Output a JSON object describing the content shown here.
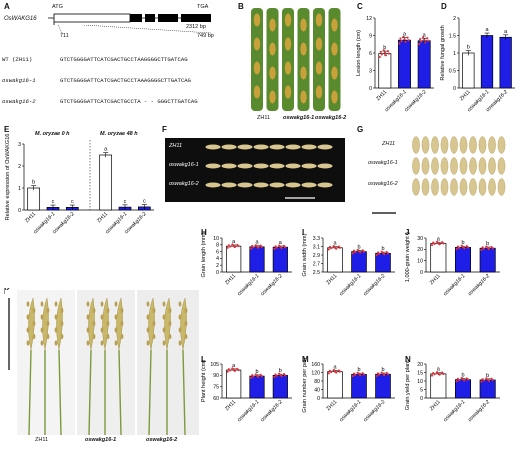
{
  "panels": {
    "A": {
      "label": "A",
      "gene": "OsWAKG16",
      "start_codon": "ATG",
      "stop_codon": "TGA",
      "length_total": "2312 bp",
      "pos_left": "711",
      "pos_right": "749 bp",
      "seqs": [
        {
          "name": "WT (ZH11)",
          "seq": "GTCTGGGGATTCATCGACTGCCTAAGGGGCTTGATCAG"
        },
        {
          "name": "oswakg16-1",
          "seq": "GTCTGGGGATTCATCGACTGCCTAAAGGGGCTTGATCAG"
        },
        {
          "name": "oswakg16-2",
          "seq": "GTCTGGGGATTCATCGACTGCCTA - - GGGCTTGATCAG"
        }
      ]
    },
    "B": {
      "label": "B",
      "genotypes": [
        "ZH11",
        "oswakg16-1",
        "oswakg16-2"
      ]
    },
    "C": {
      "label": "C"
    },
    "D": {
      "label": "D"
    },
    "E": {
      "label": "E",
      "cond1": "M. oryzae 0 h",
      "cond2": "M. oryzae 48 h"
    },
    "F": {
      "label": "F",
      "rows": [
        "ZH11",
        "oswakg16-1",
        "oswakg16-2"
      ]
    },
    "G": {
      "label": "G",
      "rows": [
        "ZH11",
        "oswakg16-1",
        "oswakg16-2"
      ]
    },
    "H": {
      "label": "H"
    },
    "I": {
      "label": "I"
    },
    "J": {
      "label": "J"
    },
    "K": {
      "label": "K",
      "genotypes": [
        "ZH11",
        "oswakg16-1",
        "oswakg16-2"
      ]
    },
    "L": {
      "label": "L"
    },
    "M": {
      "label": "M"
    },
    "N": {
      "label": "N"
    }
  },
  "colors": {
    "wt": "#ffffff",
    "mut": "#1e1ee6",
    "dots": "#e0323c",
    "leaf": "#5a8a2e",
    "lesion": "#c9a13a",
    "grain": "#d8c690",
    "brown": "#5a3a1a"
  },
  "chart_data": [
    {
      "id": "C",
      "type": "bar",
      "categories": [
        "ZH11",
        "oswakg16-1",
        "oswakg16-2"
      ],
      "values": [
        5.9,
        8.2,
        8.1
      ],
      "letters": [
        "b",
        "a",
        "a"
      ],
      "ylabel": "Lesion length (cm)",
      "ylim": [
        0,
        12
      ],
      "yticks": [
        0,
        3,
        6,
        9,
        12
      ]
    },
    {
      "id": "D",
      "type": "bar",
      "categories": [
        "ZH11",
        "oswakg16-1",
        "oswakg16-2"
      ],
      "values": [
        1.0,
        1.5,
        1.45
      ],
      "letters": [
        "b",
        "a",
        "a"
      ],
      "ylabel": "Relative fungal growth",
      "ylim": [
        0,
        2.0
      ],
      "yticks": [
        0,
        0.5,
        1.0,
        1.5,
        2.0
      ]
    },
    {
      "id": "E",
      "type": "bar",
      "categories": [
        "ZH11",
        "oswakg16-1",
        "oswakg16-2",
        "ZH11",
        "oswakg16-1",
        "oswakg16-2"
      ],
      "values": [
        1.0,
        0.12,
        0.12,
        2.5,
        0.13,
        0.14
      ],
      "letters": [
        "b",
        "c",
        "c",
        "a",
        "c",
        "c"
      ],
      "ylabel": "Relative expression of OsWAKG16",
      "ylim": [
        0,
        3
      ],
      "yticks": [
        0,
        1,
        2,
        3
      ]
    },
    {
      "id": "H",
      "type": "bar",
      "categories": [
        "ZH11",
        "oswakg16-1",
        "oswakg16-2"
      ],
      "values": [
        7.6,
        7.4,
        7.3
      ],
      "letters": [
        "a",
        "a",
        "a"
      ],
      "ylabel": "Grain length (mm)",
      "ylim": [
        0,
        10
      ],
      "yticks": [
        0,
        2,
        4,
        6,
        8,
        10
      ]
    },
    {
      "id": "I",
      "type": "bar",
      "categories": [
        "ZH11",
        "oswakg16-1",
        "oswakg16-2"
      ],
      "values": [
        3.07,
        2.98,
        2.94
      ],
      "letters": [
        "a",
        "b",
        "b"
      ],
      "ylabel": "Grain width (mm)",
      "ylim": [
        2.5,
        3.3
      ],
      "yticks": [
        2.5,
        2.7,
        2.9,
        3.1,
        3.3
      ]
    },
    {
      "id": "J",
      "type": "bar",
      "categories": [
        "ZH11",
        "oswakg16-1",
        "oswakg16-2"
      ],
      "values": [
        25.2,
        21.7,
        21.0
      ],
      "letters": [
        "a",
        "b",
        "b"
      ],
      "ylabel": "1,000-grain weight (g)",
      "ylim": [
        0,
        30
      ],
      "yticks": [
        0,
        10,
        20,
        30
      ]
    },
    {
      "id": "L",
      "type": "bar",
      "categories": [
        "ZH11",
        "oswakg16-1",
        "oswakg16-2"
      ],
      "values": [
        97,
        89,
        90
      ],
      "letters": [
        "a",
        "b",
        "b"
      ],
      "ylabel": "Plant height (cm)",
      "ylim": [
        60,
        105
      ],
      "yticks": [
        60,
        75,
        90,
        105
      ]
    },
    {
      "id": "M",
      "type": "bar",
      "categories": [
        "ZH11",
        "oswakg16-1",
        "oswakg16-2"
      ],
      "values": [
        124,
        111,
        112
      ],
      "letters": [
        "a",
        "b",
        "b"
      ],
      "ylabel": "Grain number per panicle",
      "ylim": [
        0,
        160
      ],
      "yticks": [
        0,
        40,
        80,
        120,
        160
      ]
    },
    {
      "id": "N",
      "type": "bar",
      "categories": [
        "ZH11",
        "oswakg16-1",
        "oswakg16-2"
      ],
      "values": [
        14.2,
        10.8,
        10.6
      ],
      "letters": [
        "a",
        "b",
        "b"
      ],
      "ylabel": "Grain yield per plant (g)",
      "ylim": [
        0,
        20
      ],
      "yticks": [
        0,
        5,
        10,
        15,
        20
      ]
    }
  ]
}
